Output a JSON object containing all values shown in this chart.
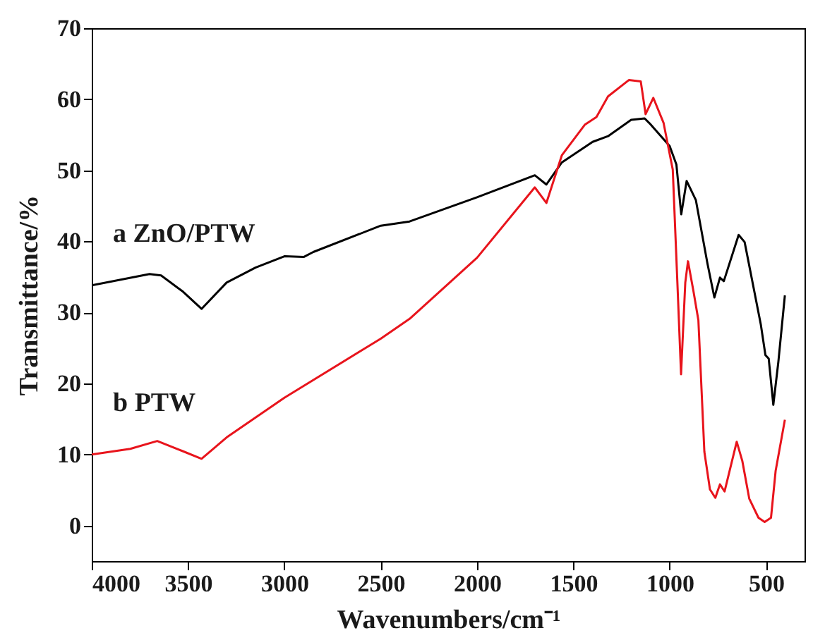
{
  "chart_data": {
    "type": "line",
    "xlabel": "Wavenumbers/cm⁻¹",
    "ylabel": "Transmittance/%",
    "xlim": [
      4000,
      300
    ],
    "xticks": [
      4000,
      3500,
      3000,
      2500,
      2000,
      1500,
      1000,
      500
    ],
    "ylim": [
      -5,
      70
    ],
    "yticks": [
      0,
      10,
      20,
      30,
      40,
      50,
      60,
      70
    ],
    "grid": false,
    "legend": false,
    "marker": "none",
    "line_style": "solid",
    "series": [
      {
        "name": "a ZnO/PTW",
        "color": "#000000",
        "x": [
          4000,
          3700,
          3640,
          3530,
          3430,
          3300,
          3150,
          3000,
          2900,
          2850,
          2500,
          2350,
          2000,
          1700,
          1640,
          1560,
          1400,
          1320,
          1200,
          1130,
          1104,
          1000,
          965,
          940,
          912,
          864,
          804,
          768,
          739,
          719,
          642,
          611,
          527,
          503,
          486,
          462,
          436,
          402
        ],
        "values": [
          33.8,
          35.4,
          35.2,
          33.0,
          30.5,
          34.2,
          36.3,
          37.9,
          37.8,
          38.5,
          42.2,
          42.8,
          46.2,
          49.3,
          48.0,
          51.1,
          54.0,
          54.8,
          57.1,
          57.3,
          56.6,
          53.4,
          50.8,
          43.8,
          48.5,
          45.8,
          36.9,
          32.1,
          34.9,
          34.4,
          40.9,
          39.9,
          28.3,
          24.0,
          23.5,
          17.0,
          23.0,
          32.4
        ]
      },
      {
        "name": "b PTW",
        "color": "#e8141c",
        "x": [
          4000,
          3800,
          3660,
          3530,
          3430,
          3300,
          3000,
          2500,
          2350,
          2000,
          1700,
          1640,
          1560,
          1441,
          1380,
          1320,
          1212,
          1150,
          1125,
          1085,
          1032,
          984,
          960,
          941,
          919,
          905,
          876,
          851,
          820,
          791,
          763,
          739,
          715,
          652,
          623,
          587,
          539,
          507,
          474,
          450,
          402
        ],
        "values": [
          10.0,
          10.8,
          11.9,
          10.5,
          9.4,
          12.4,
          18.0,
          26.3,
          29.1,
          37.7,
          47.6,
          45.4,
          52.1,
          56.4,
          57.5,
          60.4,
          62.7,
          62.5,
          57.9,
          60.2,
          56.7,
          50.1,
          34.2,
          21.3,
          34.2,
          37.2,
          32.9,
          28.9,
          10.4,
          5.1,
          3.9,
          5.8,
          4.8,
          11.8,
          9.1,
          3.8,
          1.1,
          0.5,
          1.1,
          7.7,
          14.9
        ]
      }
    ]
  }
}
